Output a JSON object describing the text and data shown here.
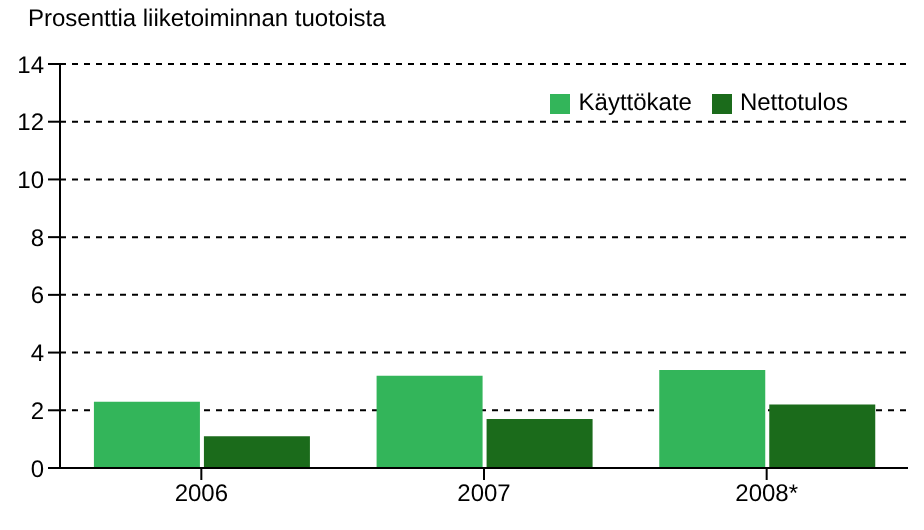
{
  "chart_data": {
    "type": "bar",
    "ylabel": "Prosenttia liiketoiminnan tuotoista",
    "categories": [
      "2006",
      "2007",
      "2008*"
    ],
    "series": [
      {
        "name": "Käyttökate",
        "color": "#33b55a",
        "values": [
          2.3,
          3.2,
          3.4
        ]
      },
      {
        "name": "Nettotulos",
        "color": "#1b6b1b",
        "values": [
          1.1,
          1.7,
          2.2
        ]
      }
    ],
    "ylim": [
      0,
      14
    ],
    "yticks": [
      0,
      2,
      4,
      6,
      8,
      10,
      12,
      14
    ],
    "grid": "y",
    "legend": "top right"
  }
}
